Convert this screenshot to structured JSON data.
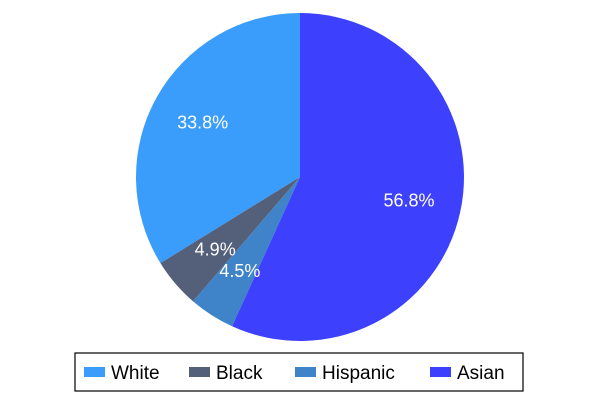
{
  "chart_data": {
    "type": "pie",
    "title": "",
    "categories": [
      "White",
      "Black",
      "Hispanic",
      "Asian"
    ],
    "values": [
      33.8,
      4.9,
      4.5,
      56.8
    ],
    "labels": [
      "33.8%",
      "4.9%",
      "4.5%",
      "56.8%"
    ],
    "colors": [
      "#3a9dfc",
      "#545f7a",
      "#3f83c8",
      "#3d40fd"
    ],
    "start_angle_deg": 0,
    "direction": "counterclockwise",
    "legend": {
      "placement": "bottom",
      "entries": [
        "White",
        "Black",
        "Hispanic",
        "Asian"
      ]
    }
  }
}
